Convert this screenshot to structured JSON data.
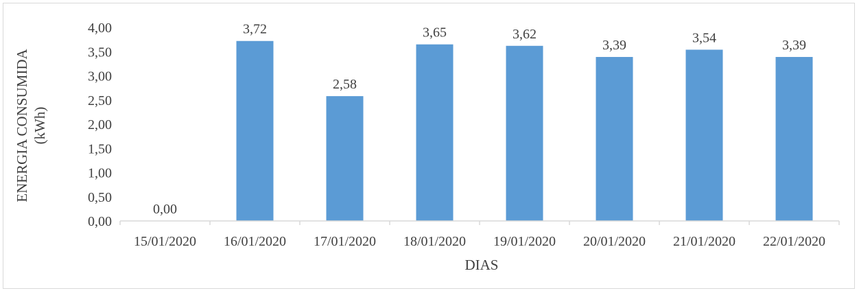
{
  "chart_data": {
    "type": "bar",
    "categories": [
      "15/01/2020",
      "16/01/2020",
      "17/01/2020",
      "18/01/2020",
      "19/01/2020",
      "20/01/2020",
      "21/01/2020",
      "22/01/2020"
    ],
    "values": [
      0.0,
      3.72,
      2.58,
      3.65,
      3.62,
      3.39,
      3.54,
      3.39
    ],
    "data_labels": [
      "0,00",
      "3,72",
      "2,58",
      "3,65",
      "3,62",
      "3,39",
      "3,54",
      "3,39"
    ],
    "xlabel": "DIAS",
    "ylabel_line1": "ENERGIA CONSUMIDA",
    "ylabel_line2": "(kWh)",
    "ylim": [
      0,
      4
    ],
    "yticks": [
      0,
      0.5,
      1,
      1.5,
      2,
      2.5,
      3,
      3.5,
      4
    ],
    "ytick_labels": [
      "0,00",
      "0,50",
      "1,00",
      "1,50",
      "2,00",
      "2,50",
      "3,00",
      "3,50",
      "4,00"
    ],
    "grid": false,
    "legend": "none",
    "bar_color": "#5b9bd5",
    "axis_color": "#d9d9d9"
  }
}
